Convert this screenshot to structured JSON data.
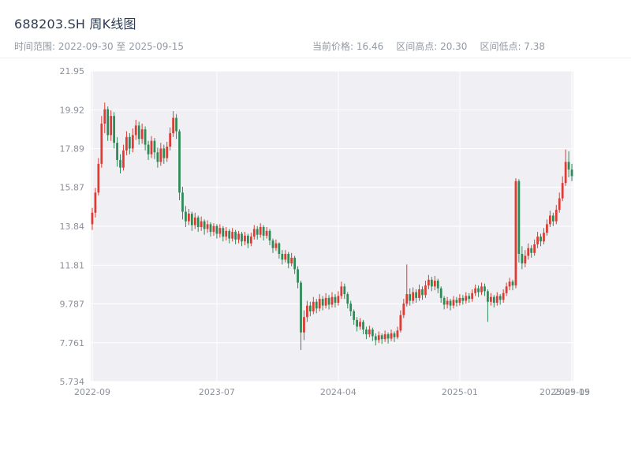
{
  "header": {
    "title": "688203.SH 周K线图",
    "subtitle_left": "时间范围: 2022-09-30 至 2025-09-15",
    "current_price": "当前价格: 16.46",
    "range_high": "区间高点: 20.30",
    "range_low": "区间低点: 7.38"
  },
  "chart_data": {
    "type": "candlestick",
    "symbol": "688203.SH",
    "interval": "weekly",
    "title": "688203.SH 周K线图",
    "date_range": [
      "2022-09-30",
      "2025-09-15"
    ],
    "current_price": 16.46,
    "range_high": 20.3,
    "range_low": 7.38,
    "y_min": 5.734,
    "y_max": 21.95,
    "y_ticks": [
      "21.95",
      "19.92",
      "17.89",
      "15.87",
      "13.84",
      "11.81",
      "9.787",
      "7.761",
      "5.734"
    ],
    "x_ticks": [
      {
        "index": 0,
        "label": "2022-09"
      },
      {
        "index": 40,
        "label": "2023-07"
      },
      {
        "index": 79,
        "label": "2024-04"
      },
      {
        "index": 118,
        "label": "2025-01"
      },
      {
        "index": 154,
        "label": "2025-09"
      }
    ],
    "end_label": "2025-09-15",
    "legend": "off",
    "grid": "on",
    "colors": {
      "up": "#dd3b33",
      "down": "#2e8b57",
      "plot_bg": "#f0f0f4",
      "grid": "#ffffff",
      "axis_text": "#8b909a"
    },
    "candle_format": [
      "open",
      "high",
      "low",
      "close"
    ],
    "candles": [
      [
        13.95,
        14.8,
        13.65,
        14.55
      ],
      [
        14.55,
        15.85,
        14.3,
        15.6
      ],
      [
        15.6,
        17.4,
        15.45,
        17.1
      ],
      [
        17.1,
        19.6,
        16.9,
        19.2
      ],
      [
        19.2,
        20.3,
        18.7,
        19.95
      ],
      [
        19.95,
        20.1,
        18.3,
        18.6
      ],
      [
        18.6,
        19.9,
        18.3,
        19.6
      ],
      [
        19.6,
        19.8,
        17.9,
        18.2
      ],
      [
        18.2,
        18.5,
        16.95,
        17.3
      ],
      [
        17.3,
        17.6,
        16.6,
        16.9
      ],
      [
        16.9,
        18.1,
        16.75,
        17.8
      ],
      [
        17.8,
        18.8,
        17.55,
        18.5
      ],
      [
        18.5,
        18.7,
        17.6,
        17.9
      ],
      [
        17.9,
        18.95,
        17.7,
        18.6
      ],
      [
        18.6,
        19.4,
        18.35,
        19.1
      ],
      [
        19.1,
        19.3,
        18.1,
        18.4
      ],
      [
        18.4,
        19.2,
        18.15,
        18.9
      ],
      [
        18.9,
        19.05,
        17.8,
        18.1
      ],
      [
        18.1,
        18.3,
        17.3,
        17.6
      ],
      [
        17.6,
        18.55,
        17.4,
        18.3
      ],
      [
        18.3,
        18.45,
        17.35,
        17.7
      ],
      [
        17.7,
        17.95,
        16.9,
        17.2
      ],
      [
        17.2,
        18.2,
        17.0,
        17.9
      ],
      [
        17.9,
        18.1,
        17.1,
        17.4
      ],
      [
        17.4,
        18.25,
        17.2,
        18.0
      ],
      [
        18.0,
        19.0,
        17.8,
        18.7
      ],
      [
        18.7,
        19.85,
        18.5,
        19.5
      ],
      [
        19.5,
        19.7,
        18.4,
        18.8
      ],
      [
        18.8,
        18.9,
        15.2,
        15.6
      ],
      [
        15.6,
        15.9,
        14.2,
        14.6
      ],
      [
        14.6,
        14.9,
        13.8,
        14.1
      ],
      [
        14.1,
        14.75,
        13.9,
        14.5
      ],
      [
        14.5,
        14.6,
        13.6,
        13.9
      ],
      [
        13.9,
        14.55,
        13.7,
        14.3
      ],
      [
        14.3,
        14.4,
        13.55,
        13.8
      ],
      [
        13.8,
        14.35,
        13.6,
        14.1
      ],
      [
        14.1,
        14.2,
        13.4,
        13.7
      ],
      [
        13.7,
        14.15,
        13.5,
        13.95
      ],
      [
        13.95,
        14.05,
        13.3,
        13.55
      ],
      [
        13.55,
        14.0,
        13.35,
        13.85
      ],
      [
        13.85,
        13.95,
        13.2,
        13.45
      ],
      [
        13.45,
        13.95,
        13.25,
        13.75
      ],
      [
        13.75,
        13.85,
        13.05,
        13.3
      ],
      [
        13.3,
        13.8,
        13.1,
        13.6
      ],
      [
        13.6,
        13.7,
        12.95,
        13.2
      ],
      [
        13.2,
        13.75,
        13.05,
        13.55
      ],
      [
        13.55,
        13.65,
        12.9,
        13.15
      ],
      [
        13.15,
        13.6,
        12.95,
        13.45
      ],
      [
        13.45,
        13.55,
        12.8,
        13.05
      ],
      [
        13.05,
        13.55,
        12.85,
        13.35
      ],
      [
        13.35,
        13.45,
        12.7,
        12.95
      ],
      [
        12.95,
        13.5,
        12.8,
        13.3
      ],
      [
        13.3,
        13.9,
        13.15,
        13.7
      ],
      [
        13.7,
        13.85,
        13.15,
        13.4
      ],
      [
        13.4,
        14.0,
        13.25,
        13.8
      ],
      [
        13.8,
        13.9,
        13.1,
        13.35
      ],
      [
        13.35,
        13.8,
        13.2,
        13.6
      ],
      [
        13.6,
        13.7,
        12.85,
        13.1
      ],
      [
        13.1,
        13.2,
        12.45,
        12.7
      ],
      [
        12.7,
        13.15,
        12.55,
        12.95
      ],
      [
        12.95,
        13.0,
        12.15,
        12.4
      ],
      [
        12.4,
        12.6,
        11.85,
        12.1
      ],
      [
        12.1,
        12.6,
        11.95,
        12.4
      ],
      [
        12.4,
        12.5,
        11.65,
        11.9
      ],
      [
        11.9,
        12.45,
        11.75,
        12.2
      ],
      [
        12.2,
        12.3,
        11.35,
        11.6
      ],
      [
        11.6,
        11.75,
        10.6,
        10.9
      ],
      [
        10.9,
        11.0,
        7.38,
        8.3
      ],
      [
        8.3,
        9.45,
        7.9,
        9.1
      ],
      [
        9.1,
        9.95,
        8.85,
        9.7
      ],
      [
        9.7,
        9.9,
        9.15,
        9.4
      ],
      [
        9.4,
        10.15,
        9.25,
        9.9
      ],
      [
        9.9,
        10.05,
        9.3,
        9.55
      ],
      [
        9.55,
        10.3,
        9.4,
        10.05
      ],
      [
        10.05,
        10.2,
        9.45,
        9.7
      ],
      [
        9.7,
        10.35,
        9.55,
        10.1
      ],
      [
        10.1,
        10.25,
        9.5,
        9.75
      ],
      [
        9.75,
        10.4,
        9.6,
        10.15
      ],
      [
        10.15,
        10.3,
        9.6,
        9.85
      ],
      [
        9.85,
        10.45,
        9.7,
        10.2
      ],
      [
        10.2,
        10.95,
        10.05,
        10.7
      ],
      [
        10.7,
        10.85,
        10.05,
        10.3
      ],
      [
        10.3,
        10.4,
        9.55,
        9.8
      ],
      [
        9.8,
        9.95,
        9.15,
        9.4
      ],
      [
        9.4,
        9.5,
        8.7,
        8.95
      ],
      [
        8.95,
        9.1,
        8.35,
        8.6
      ],
      [
        8.6,
        9.05,
        8.45,
        8.85
      ],
      [
        8.85,
        8.95,
        8.2,
        8.45
      ],
      [
        8.45,
        8.6,
        7.95,
        8.2
      ],
      [
        8.2,
        8.65,
        8.05,
        8.45
      ],
      [
        8.45,
        8.55,
        7.85,
        8.1
      ],
      [
        8.1,
        8.25,
        7.62,
        7.9
      ],
      [
        7.9,
        8.35,
        7.75,
        8.15
      ],
      [
        8.15,
        8.25,
        7.7,
        7.95
      ],
      [
        7.95,
        8.4,
        7.8,
        8.2
      ],
      [
        8.2,
        8.3,
        7.72,
        7.98
      ],
      [
        7.98,
        8.45,
        7.85,
        8.25
      ],
      [
        8.25,
        8.35,
        7.8,
        8.05
      ],
      [
        8.05,
        8.6,
        7.95,
        8.4
      ],
      [
        8.4,
        9.45,
        8.3,
        9.2
      ],
      [
        9.2,
        10.05,
        9.05,
        9.8
      ],
      [
        9.8,
        11.85,
        9.65,
        10.3
      ],
      [
        10.3,
        10.6,
        9.7,
        9.95
      ],
      [
        9.95,
        10.65,
        9.8,
        10.4
      ],
      [
        10.4,
        10.55,
        9.85,
        10.1
      ],
      [
        10.1,
        10.8,
        9.95,
        10.55
      ],
      [
        10.55,
        10.7,
        10.0,
        10.25
      ],
      [
        10.25,
        11.0,
        10.1,
        10.75
      ],
      [
        10.75,
        11.3,
        10.55,
        11.05
      ],
      [
        11.05,
        11.2,
        10.45,
        10.7
      ],
      [
        10.7,
        11.25,
        10.5,
        11.0
      ],
      [
        11.0,
        11.1,
        10.35,
        10.6
      ],
      [
        10.6,
        10.7,
        9.85,
        10.1
      ],
      [
        10.1,
        10.2,
        9.5,
        9.75
      ],
      [
        9.75,
        10.15,
        9.55,
        9.95
      ],
      [
        9.95,
        10.05,
        9.45,
        9.7
      ],
      [
        9.7,
        10.2,
        9.55,
        10.0
      ],
      [
        10.0,
        10.15,
        9.65,
        9.85
      ],
      [
        9.85,
        10.3,
        9.7,
        10.1
      ],
      [
        10.1,
        10.25,
        9.75,
        9.95
      ],
      [
        9.95,
        10.4,
        9.8,
        10.2
      ],
      [
        10.2,
        10.35,
        9.85,
        10.05
      ],
      [
        10.05,
        10.55,
        9.9,
        10.35
      ],
      [
        10.35,
        10.8,
        10.2,
        10.6
      ],
      [
        10.6,
        10.75,
        10.15,
        10.4
      ],
      [
        10.4,
        10.9,
        10.25,
        10.7
      ],
      [
        10.7,
        10.85,
        10.2,
        10.45
      ],
      [
        10.45,
        10.55,
        8.85,
        9.9
      ],
      [
        9.9,
        10.35,
        9.7,
        10.15
      ],
      [
        10.15,
        10.25,
        9.6,
        9.85
      ],
      [
        9.85,
        10.4,
        9.7,
        10.2
      ],
      [
        10.2,
        10.3,
        9.75,
        10.0
      ],
      [
        10.0,
        10.55,
        9.85,
        10.35
      ],
      [
        10.35,
        10.9,
        10.2,
        10.7
      ],
      [
        10.7,
        11.15,
        10.5,
        10.95
      ],
      [
        10.95,
        11.05,
        10.5,
        10.75
      ],
      [
        10.75,
        16.35,
        10.6,
        16.2
      ],
      [
        16.2,
        16.3,
        11.95,
        12.4
      ],
      [
        12.4,
        12.8,
        11.6,
        11.9
      ],
      [
        11.9,
        12.6,
        11.7,
        12.3
      ],
      [
        12.3,
        12.95,
        12.1,
        12.7
      ],
      [
        12.7,
        12.85,
        12.2,
        12.45
      ],
      [
        12.45,
        13.15,
        12.3,
        12.9
      ],
      [
        12.9,
        13.55,
        12.7,
        13.3
      ],
      [
        13.3,
        13.45,
        12.8,
        13.05
      ],
      [
        13.05,
        13.75,
        12.9,
        13.5
      ],
      [
        13.5,
        14.2,
        13.35,
        13.95
      ],
      [
        13.95,
        14.65,
        13.8,
        14.4
      ],
      [
        14.4,
        14.55,
        13.85,
        14.1
      ],
      [
        14.1,
        14.95,
        13.95,
        14.7
      ],
      [
        14.7,
        15.6,
        14.55,
        15.3
      ],
      [
        15.3,
        16.45,
        15.15,
        16.1
      ],
      [
        16.1,
        17.85,
        15.95,
        17.2
      ],
      [
        17.2,
        17.75,
        16.4,
        16.8
      ],
      [
        16.8,
        17.1,
        16.2,
        16.46
      ]
    ]
  }
}
